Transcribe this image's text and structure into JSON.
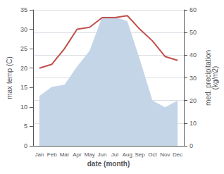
{
  "chart_data": {
    "type": "line",
    "categories": [
      "Jan",
      "Feb",
      "Mar",
      "Apr",
      "May",
      "Jun",
      "Jul",
      "Aug",
      "Sep",
      "Oct",
      "Nov",
      "Dec"
    ],
    "xlabel": "date (month)",
    "ylabel": "max temp (C)",
    "y2label": "med. precipitation\n(kg/m2)",
    "series": [
      {
        "type": "area",
        "color": "#c5d5e8",
        "axis": "y2",
        "values": [
          22,
          26,
          27,
          35,
          42,
          57,
          57,
          55,
          38,
          20,
          17,
          20
        ]
      },
      {
        "type": "line",
        "color": "#c0504d",
        "values": [
          20,
          21,
          25,
          30,
          30.5,
          33,
          33,
          33.5,
          30,
          27,
          23,
          22
        ]
      }
    ],
    "ylim": [
      0,
      35
    ],
    "yticks": [
      0,
      5,
      10,
      15,
      20,
      25,
      30,
      35
    ],
    "y2lim": [
      0,
      60
    ],
    "y2ticks": [
      0,
      10,
      20,
      30,
      40,
      50,
      60
    ],
    "grid": true
  }
}
